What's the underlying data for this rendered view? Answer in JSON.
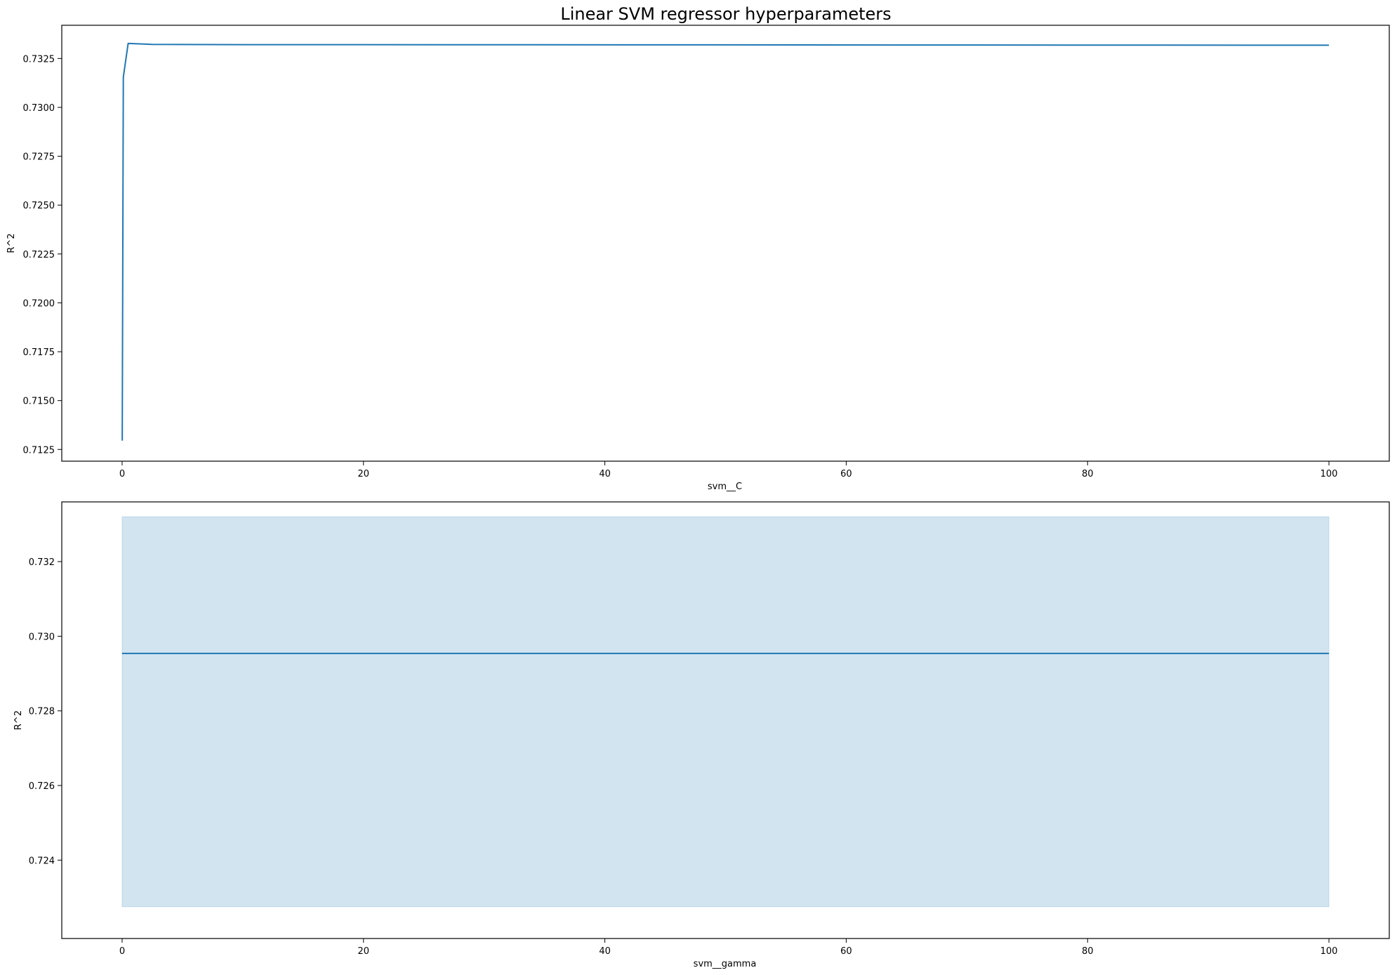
{
  "title": "Linear SVM regressor hyperparameters",
  "colors": {
    "line": "#1f77b4",
    "band": "#1f77b4"
  },
  "chart_data": [
    {
      "type": "line",
      "xlabel": "svm__C",
      "ylabel": "R^2",
      "xlim": [
        -5,
        105
      ],
      "ylim": [
        0.7119,
        0.7342
      ],
      "xticks": [
        0,
        20,
        40,
        60,
        80,
        100
      ],
      "yticks": [
        0.7125,
        0.715,
        0.7175,
        0.72,
        0.7225,
        0.725,
        0.7275,
        0.73,
        0.7325
      ],
      "ytick_labels": [
        "0.7125",
        "0.7150",
        "0.7175",
        "0.7200",
        "0.7225",
        "0.7250",
        "0.7275",
        "0.7300",
        "0.7325"
      ],
      "grid": false,
      "series": [
        {
          "x": [
            0.01,
            0.1,
            0.5,
            2.5,
            10,
            100
          ],
          "y": [
            0.71295,
            0.73155,
            0.73327,
            0.73322,
            0.73321,
            0.73318
          ]
        }
      ]
    },
    {
      "type": "line",
      "xlabel": "svm__gamma",
      "ylabel": "R^2",
      "xlim": [
        -5,
        105
      ],
      "ylim": [
        0.7219,
        0.7336
      ],
      "xticks": [
        0,
        20,
        40,
        60,
        80,
        100
      ],
      "yticks": [
        0.724,
        0.726,
        0.728,
        0.73,
        0.732
      ],
      "ytick_labels": [
        "0.724",
        "0.726",
        "0.728",
        "0.730",
        "0.732"
      ],
      "grid": false,
      "series": [
        {
          "x": [
            0,
            100
          ],
          "y": [
            0.72954,
            0.72954
          ],
          "band_lower": [
            0.72275,
            0.72275
          ],
          "band_upper": [
            0.7332,
            0.7332
          ]
        }
      ]
    }
  ]
}
